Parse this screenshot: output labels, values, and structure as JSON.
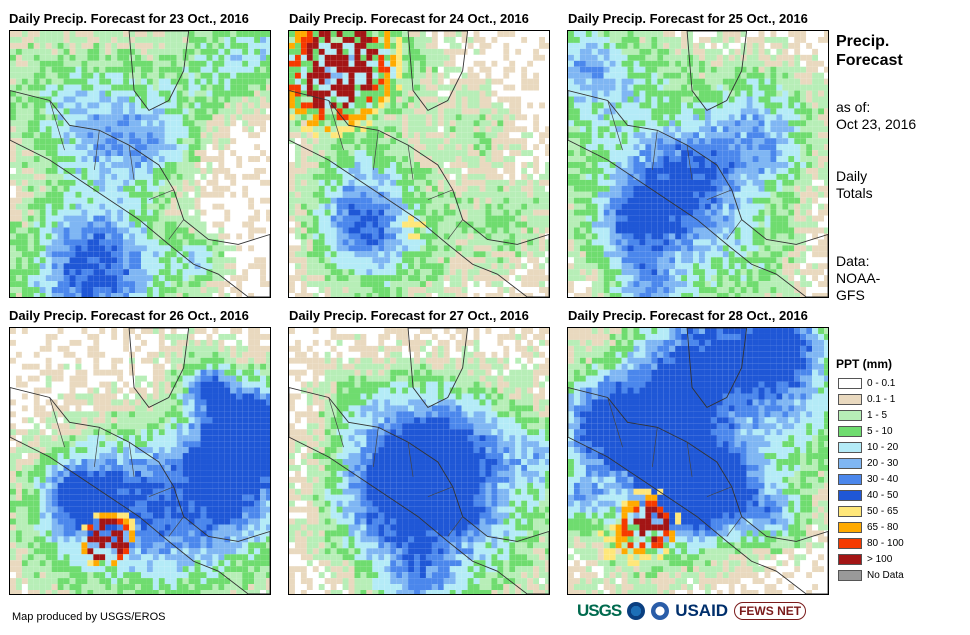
{
  "panels": [
    {
      "title": "Daily Precip. Forecast for 23 Oct., 2016",
      "seed": 11,
      "wet": 0.45
    },
    {
      "title": "Daily Precip. Forecast for 24 Oct., 2016",
      "seed": 27,
      "wet": 0.35
    },
    {
      "title": "Daily Precip. Forecast for 25 Oct., 2016",
      "seed": 43,
      "wet": 0.55
    },
    {
      "title": "Daily Precip. Forecast for 26 Oct., 2016",
      "seed": 59,
      "wet": 0.5
    },
    {
      "title": "Daily Precip. Forecast for 27 Oct., 2016",
      "seed": 71,
      "wet": 0.5
    },
    {
      "title": "Daily Precip. Forecast for 28 Oct., 2016",
      "seed": 89,
      "wet": 0.55
    }
  ],
  "side": {
    "heading_line1": "Precip.",
    "heading_line2": "Forecast",
    "asof_label": "as of:",
    "asof_date": "Oct 23, 2016",
    "totals_line1": "Daily",
    "totals_line2": "Totals",
    "data_line1": "Data:",
    "data_line2": "NOAA-",
    "data_line3": "GFS"
  },
  "legend": {
    "title": "PPT (mm)",
    "items": [
      {
        "label": "0 - 0.1",
        "color": "#ffffff"
      },
      {
        "label": "0.1 - 1",
        "color": "#e9d9bf"
      },
      {
        "label": "1 - 5",
        "color": "#b7eeb7"
      },
      {
        "label": "5 - 10",
        "color": "#6fdc6f"
      },
      {
        "label": "10 - 20",
        "color": "#b4ebf7"
      },
      {
        "label": "20 - 30",
        "color": "#7fb6f3"
      },
      {
        "label": "30 - 40",
        "color": "#4b87ec"
      },
      {
        "label": "40 - 50",
        "color": "#1f57d6"
      },
      {
        "label": "50 - 65",
        "color": "#ffe77a"
      },
      {
        "label": "65 - 80",
        "color": "#ffaa00"
      },
      {
        "label": "80 - 100",
        "color": "#f53a00"
      },
      {
        "label": "> 100",
        "color": "#a31515"
      },
      {
        "label": "No Data",
        "color": "#999999"
      }
    ]
  },
  "credit": "Map produced by USGS/EROS",
  "logos": {
    "usgs": "USGS",
    "usaid": "USAID",
    "fews": "FEWS NET"
  }
}
